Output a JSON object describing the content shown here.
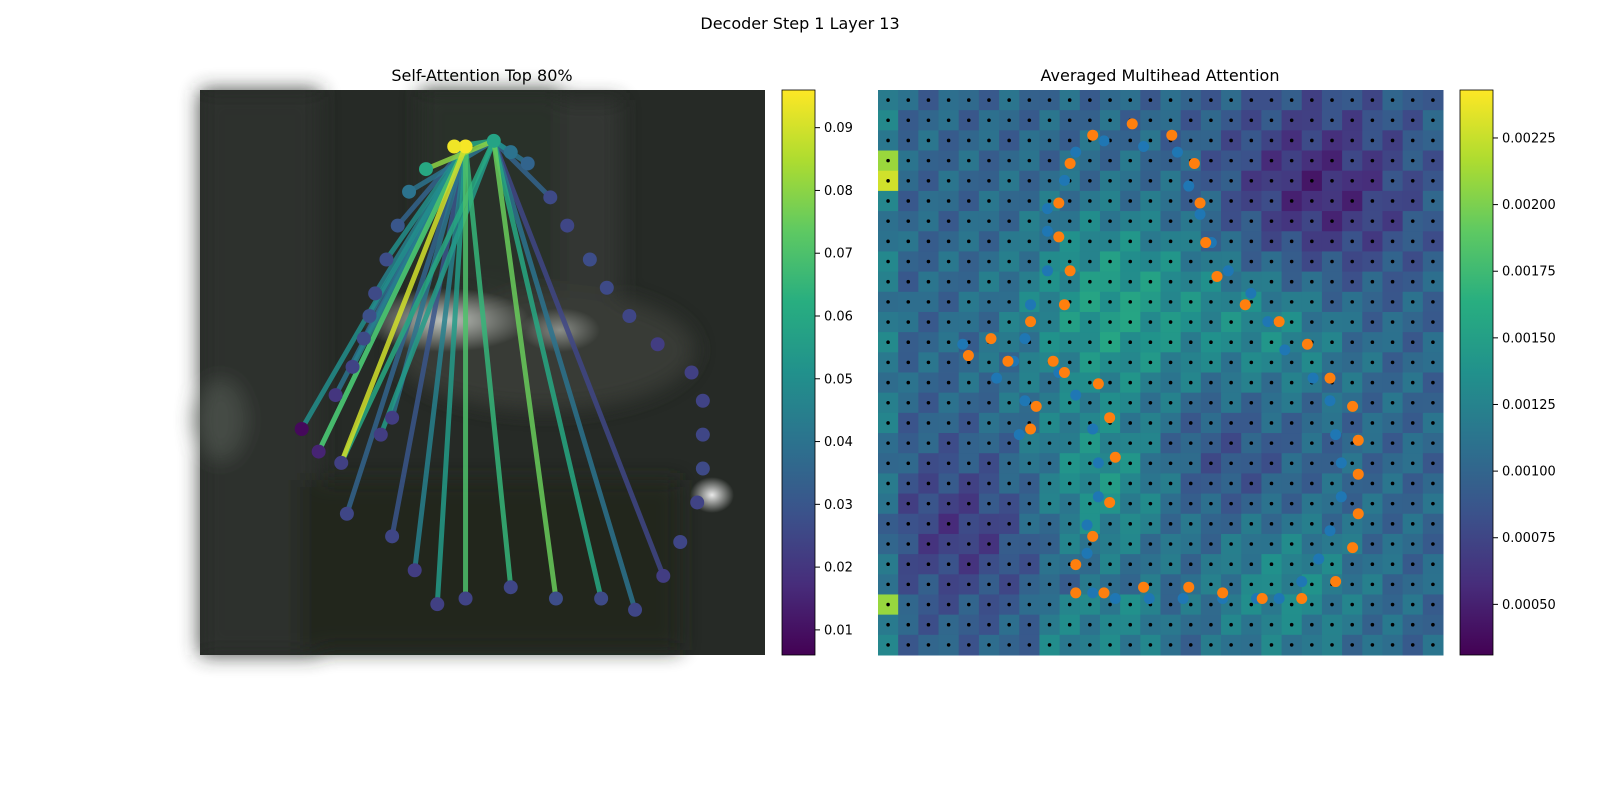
{
  "figure_title": "Decoder Step 1 Layer 13",
  "chart_data": [
    {
      "type": "scatter",
      "title": "Self-Attention Top 80%",
      "description_points": "graph nodes over dark background image; edges colored by attention weight",
      "nodes": [
        [
          0.26,
          0.75
        ],
        [
          0.34,
          0.79
        ],
        [
          0.38,
          0.85
        ],
        [
          0.42,
          0.91
        ],
        [
          0.47,
          0.9
        ],
        [
          0.55,
          0.88
        ],
        [
          0.63,
          0.9
        ],
        [
          0.71,
          0.9
        ],
        [
          0.77,
          0.92
        ],
        [
          0.82,
          0.86
        ],
        [
          0.85,
          0.8
        ],
        [
          0.88,
          0.73
        ],
        [
          0.89,
          0.67
        ],
        [
          0.89,
          0.61
        ],
        [
          0.89,
          0.55
        ],
        [
          0.87,
          0.5
        ],
        [
          0.81,
          0.45
        ],
        [
          0.76,
          0.4
        ],
        [
          0.72,
          0.35
        ],
        [
          0.69,
          0.3
        ],
        [
          0.65,
          0.24
        ],
        [
          0.62,
          0.19
        ],
        [
          0.58,
          0.13
        ],
        [
          0.55,
          0.11
        ],
        [
          0.52,
          0.09
        ],
        [
          0.47,
          0.1
        ],
        [
          0.45,
          0.1
        ],
        [
          0.4,
          0.14
        ],
        [
          0.37,
          0.18
        ],
        [
          0.35,
          0.24
        ],
        [
          0.33,
          0.3
        ],
        [
          0.31,
          0.36
        ],
        [
          0.3,
          0.4
        ],
        [
          0.29,
          0.44
        ],
        [
          0.27,
          0.49
        ],
        [
          0.24,
          0.54
        ],
        [
          0.18,
          0.6
        ],
        [
          0.21,
          0.64
        ],
        [
          0.25,
          0.66
        ],
        [
          0.32,
          0.61
        ],
        [
          0.34,
          0.58
        ]
      ],
      "node_values": [
        0.025,
        0.025,
        0.022,
        0.023,
        0.024,
        0.025,
        0.027,
        0.026,
        0.025,
        0.022,
        0.025,
        0.024,
        0.026,
        0.025,
        0.024,
        0.023,
        0.022,
        0.025,
        0.026,
        0.027,
        0.025,
        0.026,
        0.035,
        0.04,
        0.058,
        0.095,
        0.094,
        0.06,
        0.04,
        0.03,
        0.027,
        0.026,
        0.028,
        0.026,
        0.024,
        0.02,
        0.008,
        0.015,
        0.023,
        0.022,
        0.022
      ],
      "edges": [
        [
          25,
          38,
          0.09
        ],
        [
          24,
          38,
          0.06
        ],
        [
          25,
          37,
          0.07
        ],
        [
          25,
          36,
          0.05
        ],
        [
          25,
          35,
          0.04
        ],
        [
          24,
          39,
          0.055
        ],
        [
          25,
          5,
          0.065
        ],
        [
          25,
          4,
          0.07
        ],
        [
          24,
          6,
          0.075
        ],
        [
          24,
          7,
          0.06
        ],
        [
          24,
          8,
          0.04
        ],
        [
          25,
          3,
          0.055
        ],
        [
          25,
          2,
          0.045
        ],
        [
          24,
          26,
          0.06
        ],
        [
          24,
          27,
          0.08
        ],
        [
          24,
          23,
          0.05
        ],
        [
          24,
          22,
          0.04
        ],
        [
          25,
          30,
          0.05
        ],
        [
          25,
          31,
          0.045
        ],
        [
          25,
          34,
          0.045
        ],
        [
          25,
          33,
          0.035
        ],
        [
          24,
          9,
          0.025
        ],
        [
          25,
          1,
          0.03
        ],
        [
          25,
          0,
          0.035
        ],
        [
          25,
          40,
          0.04
        ],
        [
          24,
          28,
          0.04
        ],
        [
          25,
          32,
          0.04
        ],
        [
          24,
          21,
          0.035
        ],
        [
          25,
          29,
          0.035
        ],
        [
          25,
          37,
          0.06
        ]
      ],
      "colorbar": {
        "min": 0.006,
        "max": 0.096,
        "ticks": [
          "0.01",
          "0.02",
          "0.03",
          "0.04",
          "0.05",
          "0.06",
          "0.07",
          "0.08",
          "0.09"
        ]
      }
    },
    {
      "type": "heatmap",
      "title": "Averaged Multihead Attention",
      "grid_size": 28,
      "colorbar": {
        "min": 0.00031,
        "max": 0.00243,
        "ticks": [
          "0.00050",
          "0.00075",
          "0.00100",
          "0.00125",
          "0.00150",
          "0.00175",
          "0.00200",
          "0.00225"
        ]
      },
      "series": [
        {
          "color": "#1f77b4",
          "points": [
            [
              0.15,
              0.45
            ],
            [
              0.21,
              0.51
            ],
            [
              0.24,
              0.48
            ],
            [
              0.26,
              0.44
            ],
            [
              0.27,
              0.38
            ],
            [
              0.3,
              0.32
            ],
            [
              0.3,
              0.25
            ],
            [
              0.3,
              0.21
            ],
            [
              0.33,
              0.16
            ],
            [
              0.35,
              0.11
            ],
            [
              0.4,
              0.09
            ],
            [
              0.47,
              0.1
            ],
            [
              0.53,
              0.11
            ],
            [
              0.55,
              0.17
            ],
            [
              0.57,
              0.22
            ],
            [
              0.59,
              0.27
            ],
            [
              0.62,
              0.32
            ],
            [
              0.66,
              0.36
            ],
            [
              0.69,
              0.41
            ],
            [
              0.72,
              0.46
            ],
            [
              0.77,
              0.51
            ],
            [
              0.8,
              0.55
            ],
            [
              0.81,
              0.61
            ],
            [
              0.82,
              0.66
            ],
            [
              0.82,
              0.72
            ],
            [
              0.8,
              0.78
            ],
            [
              0.78,
              0.83
            ],
            [
              0.75,
              0.87
            ],
            [
              0.71,
              0.9
            ],
            [
              0.67,
              0.9
            ],
            [
              0.61,
              0.9
            ],
            [
              0.54,
              0.9
            ],
            [
              0.48,
              0.9
            ],
            [
              0.42,
              0.9
            ],
            [
              0.38,
              0.89
            ],
            [
              0.37,
              0.82
            ],
            [
              0.37,
              0.77
            ],
            [
              0.39,
              0.72
            ],
            [
              0.39,
              0.66
            ],
            [
              0.38,
              0.6
            ],
            [
              0.35,
              0.54
            ],
            [
              0.32,
              0.5
            ],
            [
              0.26,
              0.55
            ],
            [
              0.25,
              0.61
            ]
          ]
        },
        {
          "color": "#ff7f0e",
          "points": [
            [
              0.16,
              0.47
            ],
            [
              0.2,
              0.44
            ],
            [
              0.23,
              0.48
            ],
            [
              0.27,
              0.41
            ],
            [
              0.31,
              0.48
            ],
            [
              0.33,
              0.38
            ],
            [
              0.34,
              0.32
            ],
            [
              0.32,
              0.26
            ],
            [
              0.32,
              0.2
            ],
            [
              0.34,
              0.13
            ],
            [
              0.38,
              0.08
            ],
            [
              0.45,
              0.06
            ],
            [
              0.52,
              0.08
            ],
            [
              0.56,
              0.13
            ],
            [
              0.57,
              0.2
            ],
            [
              0.58,
              0.27
            ],
            [
              0.6,
              0.33
            ],
            [
              0.65,
              0.38
            ],
            [
              0.71,
              0.41
            ],
            [
              0.76,
              0.45
            ],
            [
              0.8,
              0.51
            ],
            [
              0.84,
              0.56
            ],
            [
              0.85,
              0.62
            ],
            [
              0.85,
              0.68
            ],
            [
              0.85,
              0.75
            ],
            [
              0.84,
              0.81
            ],
            [
              0.81,
              0.87
            ],
            [
              0.75,
              0.9
            ],
            [
              0.68,
              0.9
            ],
            [
              0.61,
              0.89
            ],
            [
              0.55,
              0.88
            ],
            [
              0.47,
              0.88
            ],
            [
              0.4,
              0.89
            ],
            [
              0.35,
              0.89
            ],
            [
              0.35,
              0.84
            ],
            [
              0.38,
              0.79
            ],
            [
              0.41,
              0.73
            ],
            [
              0.42,
              0.65
            ],
            [
              0.41,
              0.58
            ],
            [
              0.39,
              0.52
            ],
            [
              0.33,
              0.5
            ],
            [
              0.28,
              0.56
            ],
            [
              0.27,
              0.6
            ]
          ]
        }
      ]
    }
  ]
}
